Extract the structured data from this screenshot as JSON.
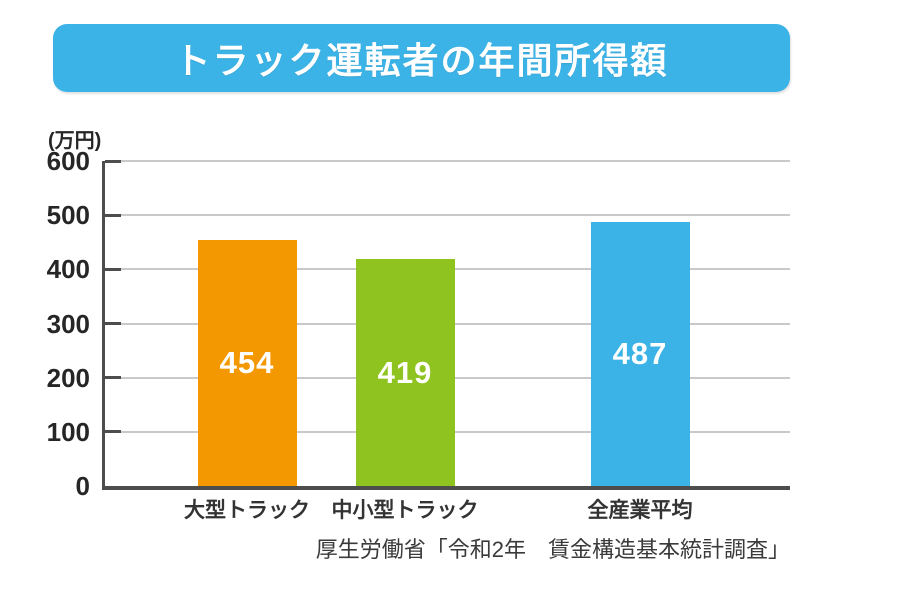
{
  "banner": {
    "title": "トラック運転者の年間所得額",
    "bg_color": "#3CB3E7",
    "text_color": "#FFFFFF"
  },
  "chart_data": {
    "type": "bar",
    "title": "トラック運転者の年間所得額",
    "unit_label": "(万円)",
    "categories": [
      "大型トラック",
      "中小型トラック",
      "全産業平均"
    ],
    "values": [
      454,
      419,
      487
    ],
    "bar_colors": [
      "#F39800",
      "#8FC31F",
      "#3CB3E7"
    ],
    "value_label_color": "#FFFFFF",
    "ylim": [
      0,
      600
    ],
    "yticks": [
      0,
      100,
      200,
      300,
      400,
      500,
      600
    ],
    "grid": true,
    "legend": false,
    "axis_color": "#4D4D4D",
    "grid_color": "#C9C9C9",
    "source_note": "厚生労働省「令和2年　賃金構造基本統計調査」"
  }
}
